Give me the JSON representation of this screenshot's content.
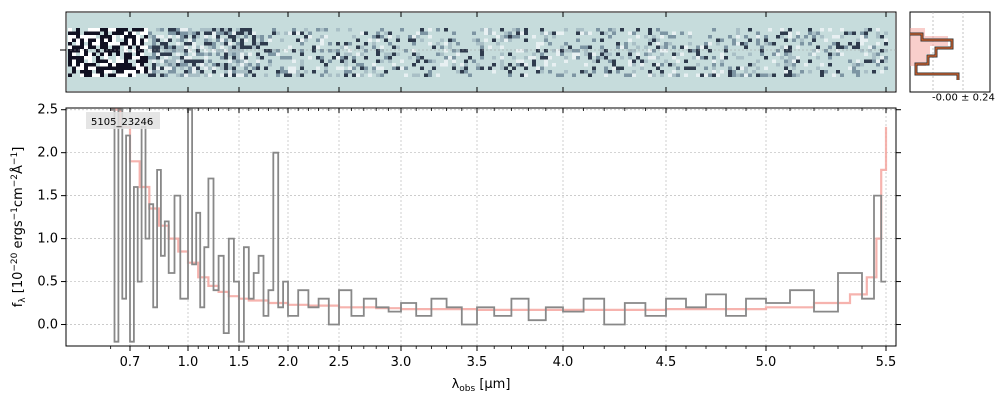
{
  "chart_data": {
    "type": "line",
    "object_label": "5105_23246",
    "xlabel_main": "λ",
    "xlabel_sub": "obs",
    "xlabel_unit": " [μm]",
    "ylabel": "f_λ [10^-20 ergs^-1 cm^-2 Å^-1]",
    "ylabel_parts": {
      "f": "f",
      "lambda_sub": "λ",
      "bracket_open": " [10",
      "exp20": "−20",
      "ergs": " ergs",
      "exp1": "−1",
      "cm": "cm",
      "exp2": "−2",
      "angstrom": "Å",
      "exp3": "−1",
      "close": "]"
    },
    "x_ticks": [
      "0.7",
      "1.0",
      "1.5",
      "2.0",
      "2.5",
      "3.0",
      "3.5",
      "4.0",
      "4.5",
      "5.0",
      "5.5"
    ],
    "x_tick_values": [
      0.7,
      1.0,
      1.5,
      2.0,
      2.5,
      3.0,
      3.5,
      4.0,
      4.5,
      5.0,
      5.5
    ],
    "y_ticks": [
      "0.0",
      "0.5",
      "1.0",
      "1.5",
      "2.0",
      "2.5"
    ],
    "y_tick_values": [
      0.0,
      0.5,
      1.0,
      1.5,
      2.0,
      2.5
    ],
    "xlim": [
      0.55,
      5.52
    ],
    "ylim": [
      -0.25,
      2.52
    ],
    "x_scale": "reciprocal-like (denser at short wavelengths)",
    "grid": true,
    "series": [
      {
        "role": "data",
        "color": "#888888",
        "x": [
          0.6,
          0.62,
          0.64,
          0.66,
          0.68,
          0.7,
          0.72,
          0.74,
          0.76,
          0.78,
          0.8,
          0.82,
          0.84,
          0.86,
          0.88,
          0.9,
          0.93,
          0.96,
          1.0,
          1.04,
          1.08,
          1.12,
          1.16,
          1.2,
          1.25,
          1.3,
          1.35,
          1.4,
          1.45,
          1.5,
          1.55,
          1.6,
          1.65,
          1.7,
          1.75,
          1.8,
          1.85,
          1.9,
          1.95,
          2.0,
          2.1,
          2.2,
          2.3,
          2.4,
          2.5,
          2.6,
          2.7,
          2.8,
          2.9,
          3.0,
          3.1,
          3.2,
          3.3,
          3.4,
          3.5,
          3.6,
          3.7,
          3.8,
          3.9,
          4.0,
          4.1,
          4.2,
          4.3,
          4.4,
          4.5,
          4.6,
          4.7,
          4.8,
          4.9,
          5.0,
          5.1,
          5.2,
          5.3,
          5.4,
          5.45,
          5.48,
          5.5
        ],
        "y": [
          2.5,
          -0.2,
          2.5,
          0.3,
          2.2,
          -0.2,
          1.6,
          0.5,
          2.3,
          1.0,
          1.4,
          0.2,
          1.8,
          0.8,
          1.2,
          0.6,
          1.5,
          0.3,
          2.5,
          0.7,
          1.3,
          0.2,
          0.9,
          1.7,
          0.4,
          0.8,
          -0.1,
          1.0,
          0.5,
          -0.2,
          0.9,
          0.3,
          0.6,
          0.8,
          0.1,
          0.4,
          2.0,
          0.2,
          0.5,
          0.1,
          0.4,
          0.2,
          0.3,
          0.0,
          0.4,
          0.1,
          0.3,
          0.2,
          0.15,
          0.25,
          0.1,
          0.3,
          0.2,
          0.0,
          0.2,
          0.1,
          0.3,
          0.05,
          0.2,
          0.15,
          0.3,
          0.0,
          0.25,
          0.1,
          0.3,
          0.2,
          0.35,
          0.1,
          0.3,
          0.25,
          0.4,
          0.15,
          0.6,
          0.3,
          1.5,
          0.5,
          0.5
        ]
      },
      {
        "role": "model",
        "color": "#f4a6a0",
        "x": [
          0.6,
          0.65,
          0.7,
          0.75,
          0.8,
          0.85,
          0.9,
          0.95,
          1.0,
          1.1,
          1.2,
          1.3,
          1.4,
          1.5,
          1.6,
          1.8,
          2.0,
          2.2,
          2.5,
          2.8,
          3.0,
          3.5,
          4.0,
          4.5,
          5.0,
          5.2,
          5.35,
          5.42,
          5.46,
          5.48,
          5.5
        ],
        "y": [
          2.5,
          2.3,
          1.9,
          1.6,
          1.35,
          1.15,
          1.0,
          0.85,
          0.72,
          0.55,
          0.45,
          0.38,
          0.33,
          0.3,
          0.28,
          0.25,
          0.23,
          0.22,
          0.2,
          0.19,
          0.18,
          0.17,
          0.17,
          0.18,
          0.2,
          0.25,
          0.35,
          0.55,
          1.0,
          1.8,
          2.3
        ]
      }
    ]
  },
  "side_panel": {
    "label": "-0.00 ± 0.24"
  },
  "colors": {
    "data": "#888888",
    "model": "#f4a6a0",
    "spectrum_bg": "#c6dcdc",
    "dark": "#333344",
    "profile": "#d8622a"
  }
}
